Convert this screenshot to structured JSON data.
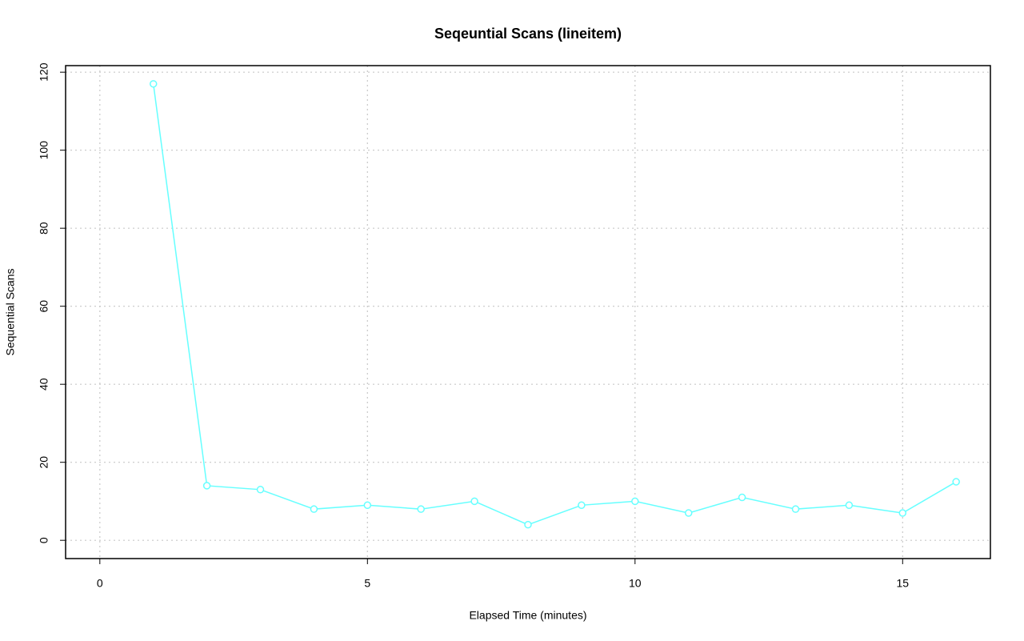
{
  "chart_data": {
    "type": "line",
    "title": "Seqeuntial Scans (lineitem)",
    "x_label": "Elapsed Time (minutes)",
    "y_label": "Sequential Scans",
    "x": [
      1,
      2,
      3,
      4,
      5,
      6,
      7,
      8,
      9,
      10,
      11,
      12,
      13,
      14,
      15,
      16
    ],
    "series": [
      {
        "color": "#66ffff",
        "values": [
          117,
          14,
          13,
          8,
          9,
          8,
          10,
          4,
          9,
          10,
          7,
          11,
          8,
          9,
          7,
          15
        ]
      }
    ],
    "xlim": [
      -0.64,
      16.64
    ],
    "ylim": [
      -4.68,
      121.68
    ],
    "xticks": [
      0,
      5,
      10,
      15
    ],
    "yticks": [
      0,
      20,
      40,
      60,
      80,
      100,
      120
    ],
    "grid": true
  }
}
